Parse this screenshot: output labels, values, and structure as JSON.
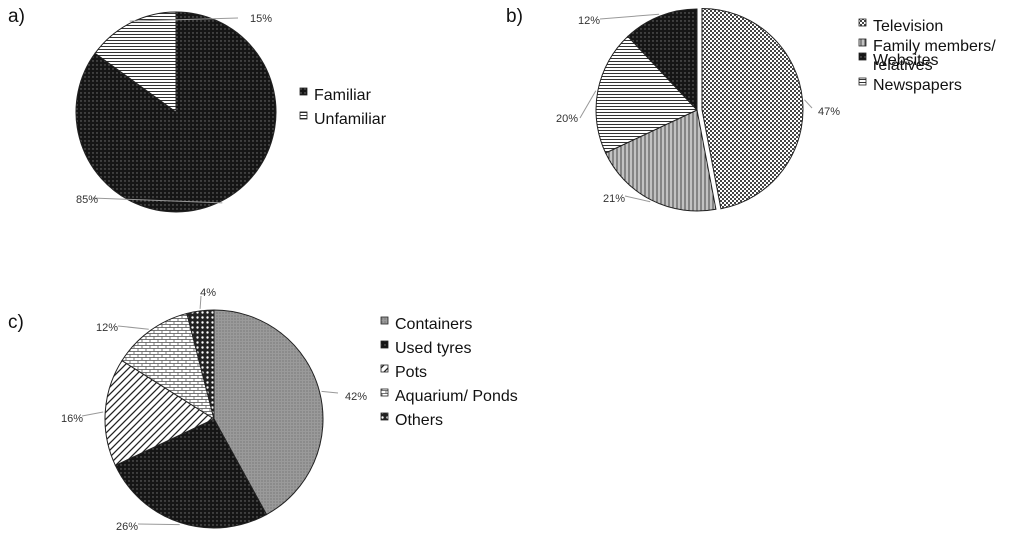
{
  "chart_data": [
    {
      "id": "a",
      "type": "pie",
      "panel_label": "a)",
      "categories": [
        "Familiar",
        "Unfamiliar"
      ],
      "values": [
        85,
        15
      ],
      "data_labels": [
        "85%",
        "15%"
      ],
      "legend": {
        "placement": "right",
        "entries": [
          "Familiar",
          "Unfamiliar"
        ]
      },
      "title": ""
    },
    {
      "id": "b",
      "type": "pie",
      "panel_label": "b)",
      "categories": [
        "Television",
        "Family members/ relatives",
        "Newspapers",
        "Websites"
      ],
      "legend_lines": [
        [
          "Television"
        ],
        [
          "Family members/",
          "relatives"
        ],
        [
          "Newspapers"
        ],
        [
          "Websites"
        ]
      ],
      "values": [
        47,
        21,
        20,
        12
      ],
      "data_labels": [
        "47%",
        "21%",
        "20%",
        "12%"
      ],
      "legend": {
        "placement": "right"
      },
      "title": ""
    },
    {
      "id": "c",
      "type": "pie",
      "panel_label": "c)",
      "categories": [
        "Containers",
        "Used tyres",
        "Pots",
        "Aquarium/ Ponds",
        "Others"
      ],
      "values": [
        42,
        26,
        16,
        12,
        4
      ],
      "data_labels": [
        "42%",
        "26%",
        "16%",
        "12%",
        "4%"
      ],
      "legend": {
        "placement": "right"
      },
      "title": ""
    }
  ],
  "styles": {
    "stroke_color": "#222222",
    "fill_dark": "#1a1a1a",
    "fill_gray": "#8a8a8a"
  }
}
